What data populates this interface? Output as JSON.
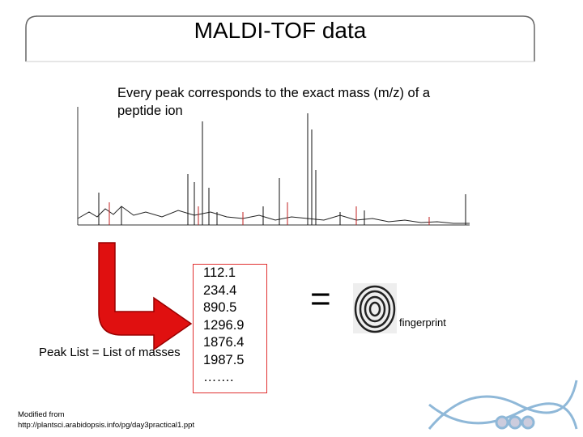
{
  "header": {
    "title": "MALDI-TOF  data"
  },
  "description": "Every peak corresponds to the exact mass (m/z) of a peptide ion",
  "peak_list": {
    "label": "Peak List = List of masses",
    "masses": [
      "112.1",
      "234.4",
      "890.5",
      "1296.9",
      "1876.4",
      "1987.5",
      "……."
    ]
  },
  "equals": "=",
  "fingerprint_label": "fingerprint",
  "footer": {
    "line1": "Modified from",
    "line2": "http://plantsci.arabidopsis.info/pg/day3practical1.ppt"
  }
}
